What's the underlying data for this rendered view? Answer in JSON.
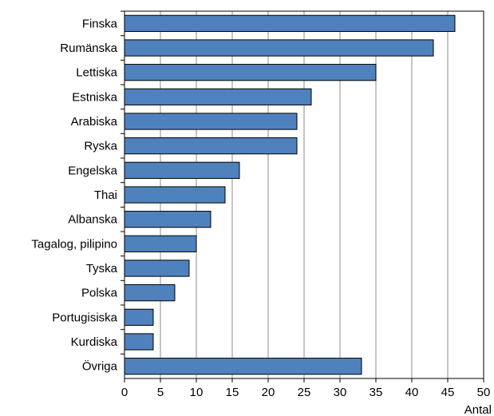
{
  "chart_data": {
    "type": "bar",
    "orientation": "horizontal",
    "title": "",
    "xlabel": "Antal",
    "ylabel": "",
    "categories": [
      "Finska",
      "Rumänska",
      "Lettiska",
      "Estniska",
      "Arabiska",
      "Ryska",
      "Engelska",
      "Thai",
      "Albanska",
      "Tagalog, pilipino",
      "Tyska",
      "Polska",
      "Portugisiska",
      "Kurdiska",
      "Övriga"
    ],
    "values": [
      46,
      43,
      35,
      26,
      24,
      24,
      16,
      14,
      12,
      10,
      9,
      7,
      4,
      4,
      33
    ],
    "xlim": [
      0,
      50
    ],
    "xticks": [
      "0",
      "5",
      "10",
      "15",
      "20",
      "25",
      "30",
      "35",
      "40",
      "45",
      "50"
    ],
    "grid": "vertical",
    "legend": "none",
    "bar_color": "#4f81bd",
    "bar_edge_color": "#000000",
    "grid_color": "#8c8c8c"
  }
}
